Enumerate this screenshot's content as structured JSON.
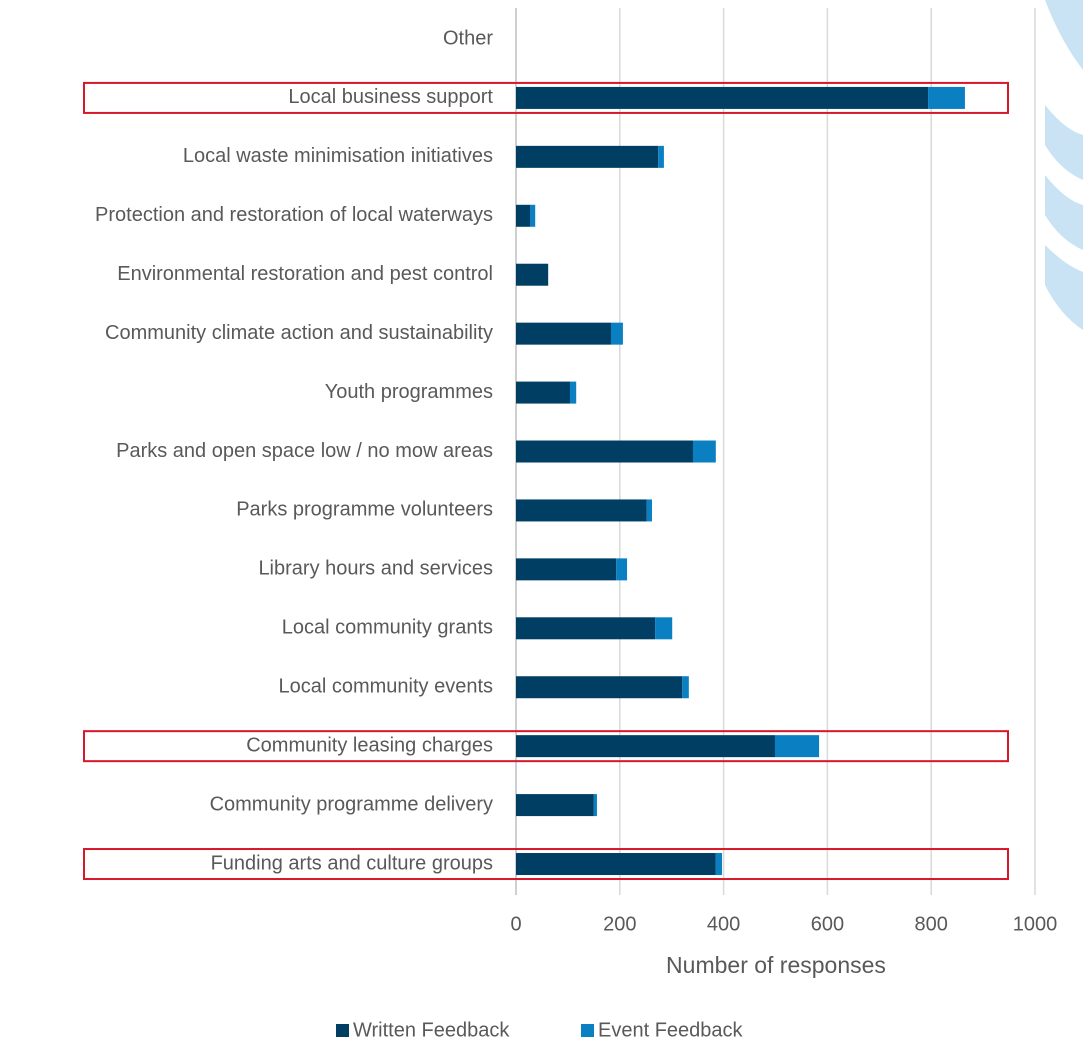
{
  "chart_data": {
    "type": "stacked-barh",
    "categories": [
      "Other",
      "Local business support",
      "Local waste minimisation initiatives",
      "Protection and restoration of local waterways",
      "Environmental restoration and pest control",
      "Community climate action and sustainability",
      "Youth programmes",
      "Parks and open space low / no mow areas",
      "Parks programme volunteers",
      "Library hours and services",
      "Local community grants",
      "Local community events",
      "Community leasing charges",
      "Community programme delivery",
      "Funding arts and culture groups"
    ],
    "series": [
      {
        "name": "Written Feedback",
        "color": "#003f63",
        "values": [
          0,
          794,
          274,
          27,
          62,
          183,
          104,
          341,
          252,
          193,
          268,
          320,
          499,
          150,
          385
        ]
      },
      {
        "name": "Event Feedback",
        "color": "#0a7fc2",
        "values": [
          0,
          71,
          11,
          10,
          0,
          23,
          12,
          44,
          10,
          21,
          33,
          13,
          85,
          6,
          12
        ]
      }
    ],
    "xlabel": "Number of responses",
    "xlim": [
      0,
      1000
    ],
    "xticks": [
      0,
      200,
      400,
      600,
      800,
      1000
    ],
    "grid": true,
    "legend": "bottom",
    "highlight": [
      1,
      12,
      14
    ],
    "highlight_color": "#d7182a"
  }
}
